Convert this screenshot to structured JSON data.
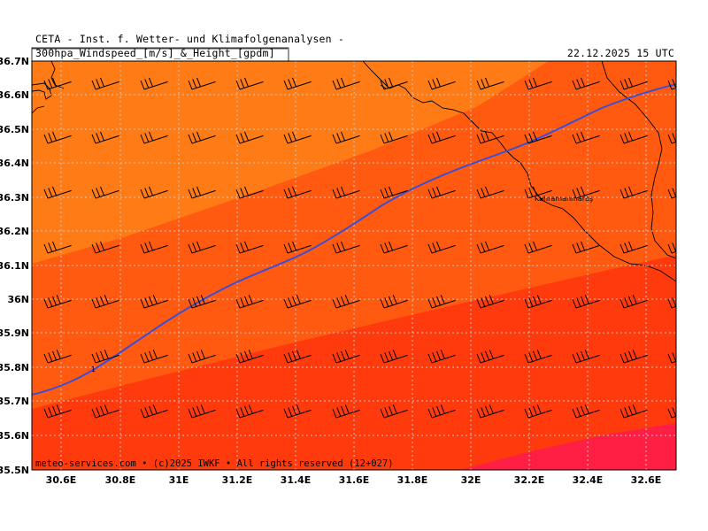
{
  "header": {
    "line1": "CETA - Inst. f. Wetter- und Klimafolgenanalysen -",
    "line2": "300hpa_Windspeed_[m/s]_&_Height_[gpdm]",
    "valid_time": "22.12.2025 15 UTC"
  },
  "footer": {
    "credit": "meteo-services.com • (c)2025 IWKF • All rights reserved (12+027)"
  },
  "map": {
    "place_label": "Kahramanmaraş",
    "lon_labels": [
      "30.6E",
      "30.8E",
      "31E",
      "31.2E",
      "31.4E",
      "31.6E",
      "31.8E",
      "32E",
      "32.2E",
      "32.4E",
      "32.6E"
    ],
    "lat_labels": [
      "36.7N",
      "36.6N",
      "36.5N",
      "36.4N",
      "36.3N",
      "36.2N",
      "36.1N",
      "36N",
      "35.9N",
      "35.8N",
      "35.7N",
      "35.6N",
      "35.5N"
    ],
    "colors": {
      "band_1": "#ff7b16",
      "band_2": "#ff5a10",
      "band_3": "#ff3a0c",
      "band_4": "#ff1f44",
      "height_contour": "#3a4fd6",
      "grid": "#c8c8c8",
      "coast": "#000000"
    }
  }
}
